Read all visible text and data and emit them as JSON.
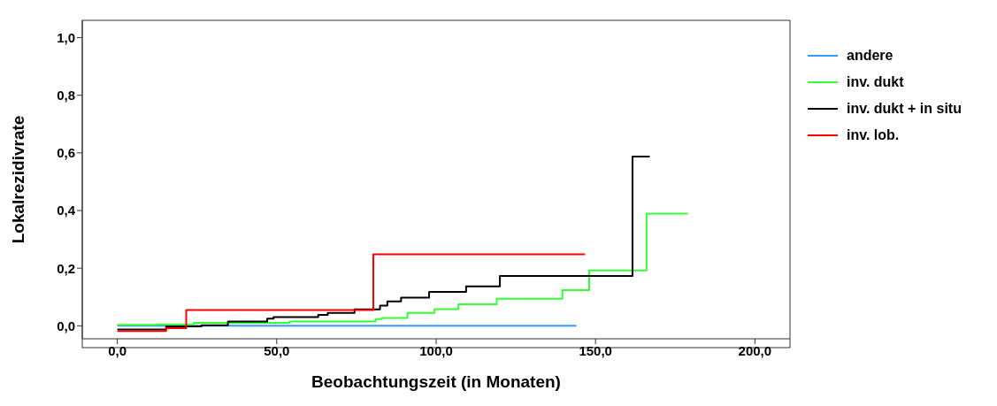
{
  "chart_data": {
    "type": "step",
    "xlabel": "Beobachtungszeit (in Monaten)",
    "ylabel": "Lokalrezidivrate",
    "xlim": [
      -11,
      211
    ],
    "xticks": [
      {
        "value": 0,
        "label": "0,0"
      },
      {
        "value": 50,
        "label": "50,0"
      },
      {
        "value": 100,
        "label": "100,0"
      },
      {
        "value": 150,
        "label": "150,0"
      },
      {
        "value": 200,
        "label": "200,0"
      }
    ],
    "ylim": [
      -0.045,
      1.06
    ],
    "yticks": [
      {
        "value": 0,
        "label": "0,0"
      },
      {
        "value": 0.2,
        "label": "0,2"
      },
      {
        "value": 0.4,
        "label": "0,4"
      },
      {
        "value": 0.6,
        "label": "0,6"
      },
      {
        "value": 0.8,
        "label": "0,8"
      },
      {
        "value": 1,
        "label": "1,0"
      }
    ],
    "grid": false,
    "legend": "right",
    "marker": "none",
    "line_style": "solid",
    "series": [
      {
        "name": "andere",
        "color": "#3399ff",
        "x": [
          0,
          144
        ],
        "values": [
          0,
          0
        ]
      },
      {
        "name": "inv. dukt",
        "color": "#33ff33",
        "x": [
          0,
          12.5,
          24,
          54,
          81,
          83,
          91,
          99.5,
          107,
          119,
          139.6,
          148,
          166,
          179
        ],
        "values": [
          0.003,
          0.005,
          0.01,
          0.015,
          0.023,
          0.027,
          0.045,
          0.058,
          0.075,
          0.094,
          0.124,
          0.192,
          0.389,
          0.389
        ]
      },
      {
        "name": "inv. dukt + in situ",
        "color": "#000000",
        "x": [
          0,
          15.3,
          26.4,
          34.7,
          47,
          49,
          63,
          66,
          74.4,
          82.4,
          84.7,
          89,
          97.8,
          109.4,
          120,
          161.6,
          167
        ],
        "values": [
          -0.013,
          -0.002,
          0.002,
          0.015,
          0.025,
          0.03,
          0.038,
          0.045,
          0.057,
          0.07,
          0.085,
          0.098,
          0.118,
          0.137,
          0.173,
          0.587,
          0.587
        ]
      },
      {
        "name": "inv. lob.",
        "color": "#ff0000",
        "x": [
          0,
          15.3,
          21.6,
          80.3,
          146.7
        ],
        "values": [
          -0.018,
          -0.008,
          0.055,
          0.248,
          0.248
        ]
      }
    ]
  }
}
